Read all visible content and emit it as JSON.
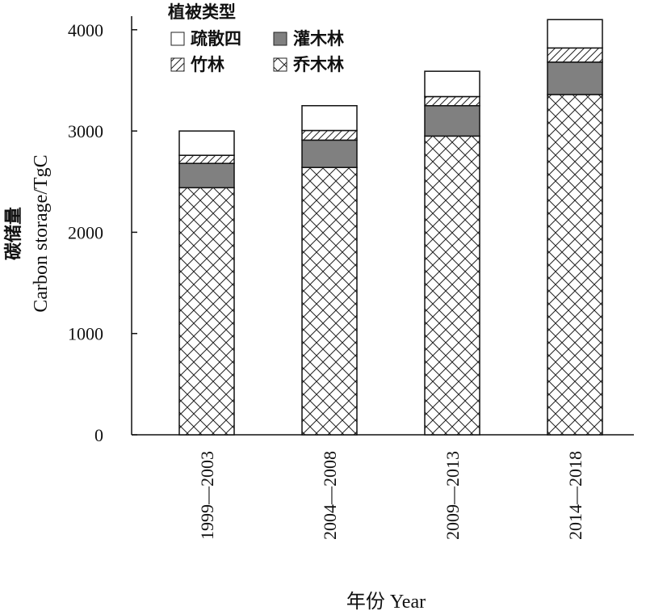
{
  "chart_data": {
    "type": "bar",
    "stacked": true,
    "categories": [
      "1999—2003",
      "2004—2008",
      "2009—2013",
      "2014—2018"
    ],
    "series": [
      {
        "name": "乔木林",
        "values": [
          2440,
          2640,
          2950,
          3360
        ],
        "pattern": "crosshatch"
      },
      {
        "name": "灌木林",
        "values": [
          240,
          270,
          300,
          320
        ],
        "pattern": "solid-gray",
        "color": "#808080"
      },
      {
        "name": "竹林",
        "values": [
          80,
          95,
          90,
          140
        ],
        "pattern": "diagonal"
      },
      {
        "name": "疏散四",
        "values": [
          240,
          245,
          250,
          280
        ],
        "pattern": "white"
      }
    ],
    "ylabel_cn": "碳储量",
    "ylabel": "Carbon storage/TgC",
    "xlabel": "年份 Year",
    "yticks": [
      0,
      1000,
      2000,
      3000,
      4000
    ],
    "ylim": [
      0,
      4200
    ],
    "legend": {
      "title": "植被类型",
      "placement": "top-left",
      "items": [
        "疏散四",
        "灌木林",
        "竹林",
        "乔木林"
      ]
    },
    "grid": false
  }
}
